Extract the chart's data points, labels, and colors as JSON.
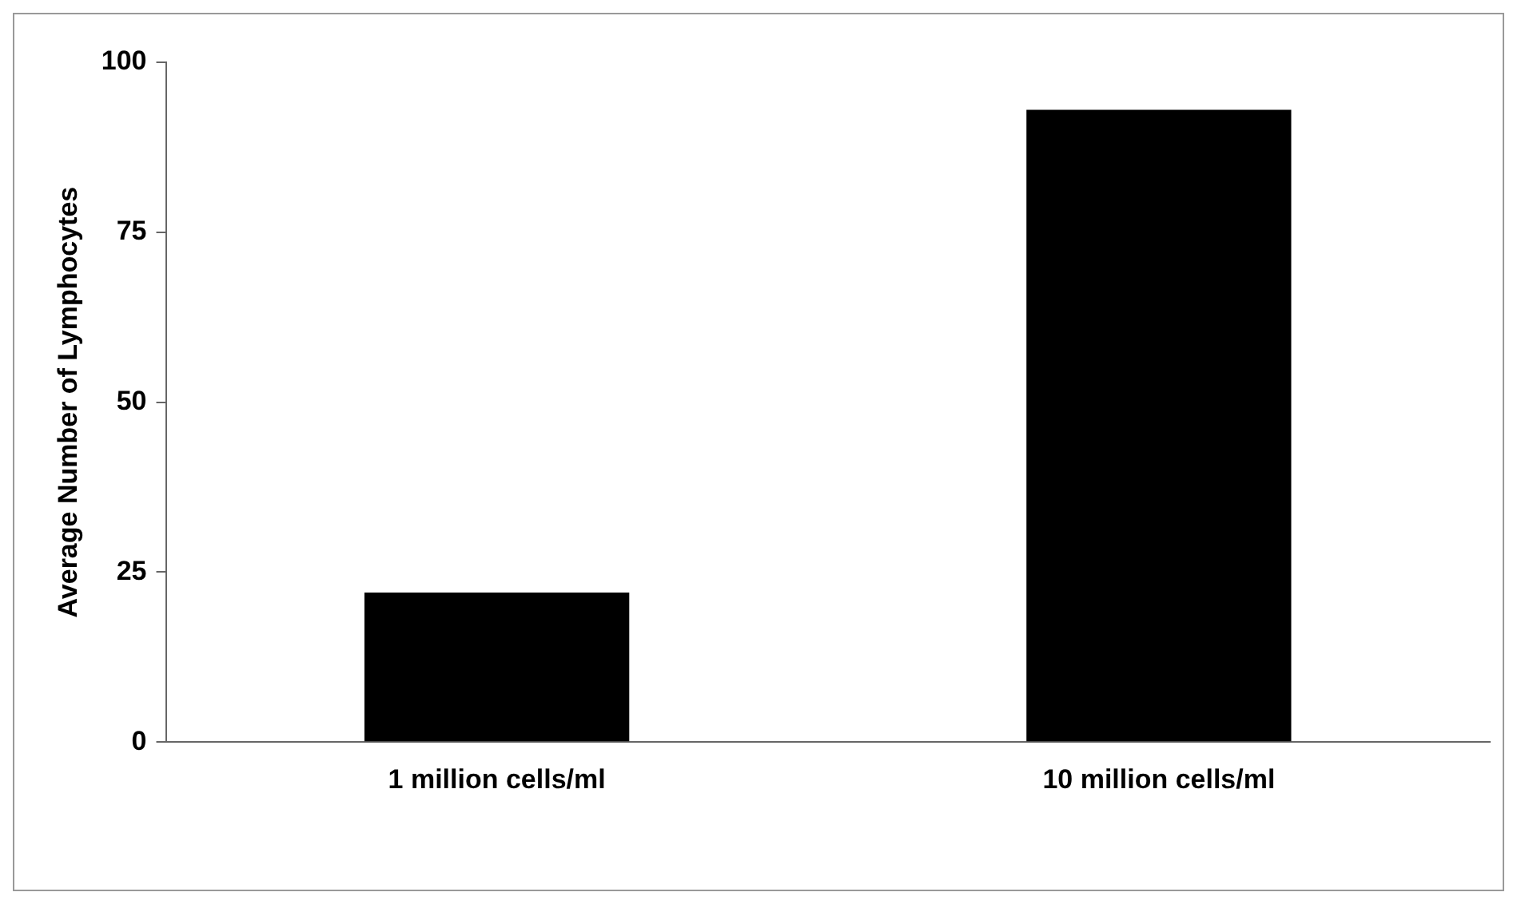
{
  "chart_data": {
    "type": "bar",
    "ylabel": "Average Number of Lymphocytes",
    "categories": [
      "1 million cells/ml",
      "10 million cells/ml"
    ],
    "values": [
      22,
      93
    ],
    "color": "#000000",
    "ylim": [
      0,
      100
    ],
    "yticks": [
      0,
      25,
      50,
      75,
      100
    ],
    "grid": false
  }
}
